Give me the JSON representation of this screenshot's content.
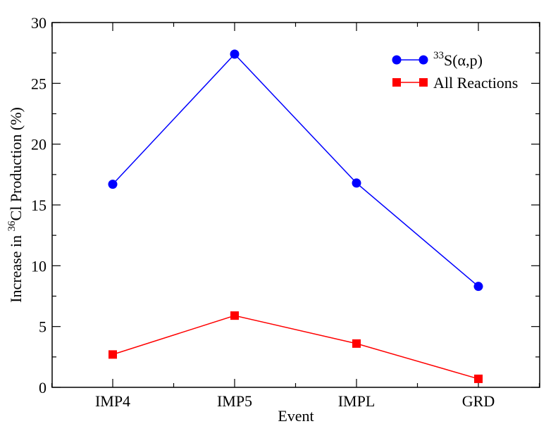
{
  "chart_data": {
    "type": "line",
    "categories": [
      "IMP4",
      "IMP5",
      "IMPL",
      "GRD"
    ],
    "xlabel": "Event",
    "ylabel": {
      "prefix": "Increase in ",
      "sup": "36",
      "suffix": "Cl Production (%)"
    },
    "ylim": [
      0,
      30
    ],
    "yticks": [
      "0",
      "5",
      "10",
      "15",
      "20",
      "25",
      "30"
    ],
    "grid": false,
    "legend_position": "top-right",
    "series": [
      {
        "name_sup": "33",
        "name_main": "S(α,p)",
        "values": [
          16.7,
          27.4,
          16.8,
          8.3
        ],
        "color": "#0000ff",
        "marker": "circle"
      },
      {
        "name": "All Reactions",
        "values": [
          2.7,
          5.9,
          3.6,
          0.7
        ],
        "color": "#ff0000",
        "marker": "square"
      }
    ]
  }
}
